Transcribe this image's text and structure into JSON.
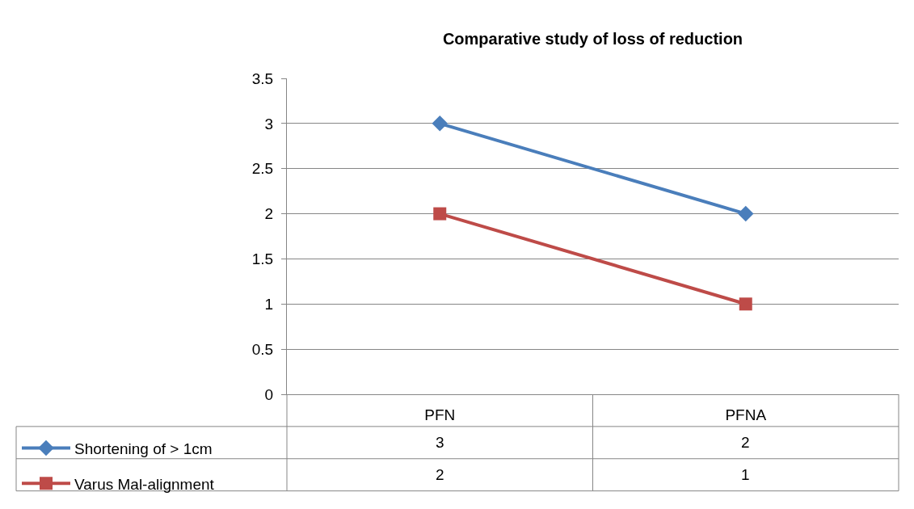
{
  "chart_data": {
    "type": "line",
    "title": "Comparative study of loss of reduction",
    "categories": [
      "PFN",
      "PFNA"
    ],
    "series": [
      {
        "name": "Shortening of > 1cm",
        "color": "#4a7ebb",
        "marker": "diamond",
        "values": [
          3,
          2
        ]
      },
      {
        "name": "Varus Mal-alignment",
        "color": "#be4b48",
        "marker": "square",
        "values": [
          2,
          1
        ]
      }
    ],
    "ylim": [
      0,
      3.5
    ],
    "yticks": [
      0,
      0.5,
      1,
      1.5,
      2,
      2.5,
      3,
      3.5
    ],
    "grid": "y",
    "legend": "bottom left",
    "data_labels": true,
    "line_style": "solid"
  }
}
